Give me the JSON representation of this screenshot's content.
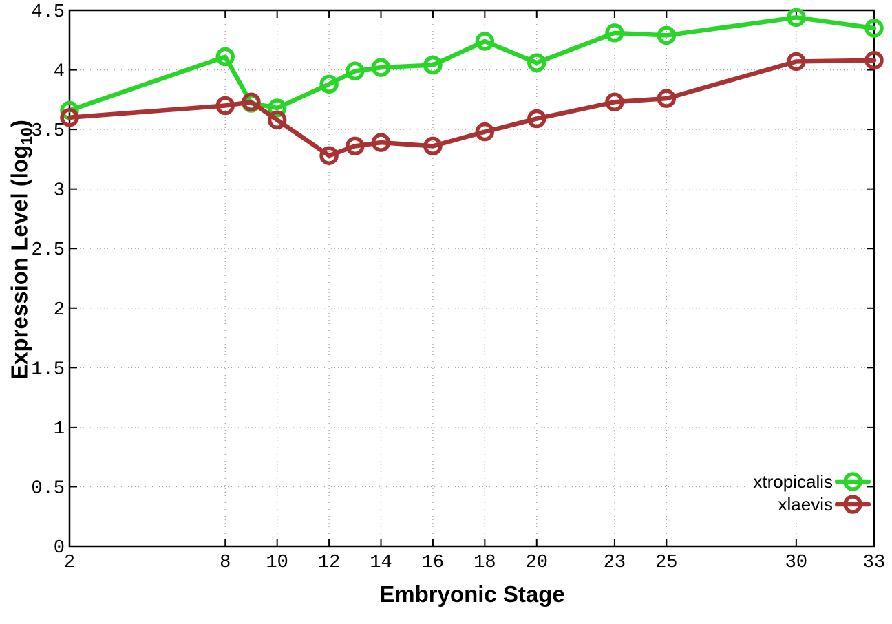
{
  "chart_data": {
    "type": "line",
    "xlabel": "Embryonic Stage",
    "ylabel": "Expression Level (log10)",
    "ylabel_parts": {
      "pre": "Expression Level (log",
      "sub": "10",
      "post": ")"
    },
    "x": [
      2,
      8,
      9,
      10,
      12,
      13,
      14,
      16,
      18,
      20,
      23,
      25,
      30,
      33
    ],
    "series": [
      {
        "name": "xtropicalis",
        "color": "#2AD52A",
        "values": [
          3.66,
          4.11,
          3.72,
          3.68,
          3.88,
          3.99,
          4.02,
          4.04,
          4.24,
          4.06,
          4.31,
          4.29,
          4.44,
          4.35
        ]
      },
      {
        "name": "xlaevis",
        "color": "#A93232",
        "values": [
          3.6,
          3.7,
          3.73,
          3.58,
          3.28,
          3.36,
          3.39,
          3.36,
          3.48,
          3.59,
          3.73,
          3.76,
          4.07,
          4.08
        ]
      }
    ],
    "xticks": [
      2,
      8,
      10,
      12,
      14,
      16,
      18,
      20,
      23,
      25,
      30,
      33
    ],
    "xtick_labels": [
      "2",
      "8",
      "10",
      "12",
      "14",
      "16",
      "18",
      "20",
      "23",
      "25",
      "30",
      "33"
    ],
    "yticks": [
      0,
      0.5,
      1,
      1.5,
      2,
      2.5,
      3,
      3.5,
      4,
      4.5
    ],
    "ytick_labels": [
      "0",
      "0.5",
      "1",
      "1.5",
      "2",
      "2.5",
      "3",
      "3.5",
      "4",
      "4.5"
    ],
    "xlim": [
      2,
      33
    ],
    "ylim": [
      0,
      4.5
    ],
    "grid": true,
    "grid_color": "#a8a8a8",
    "axis_color": "#000000",
    "background_color": "#ffffff",
    "legend_position": "bottom-right",
    "marker": "open-circle"
  }
}
